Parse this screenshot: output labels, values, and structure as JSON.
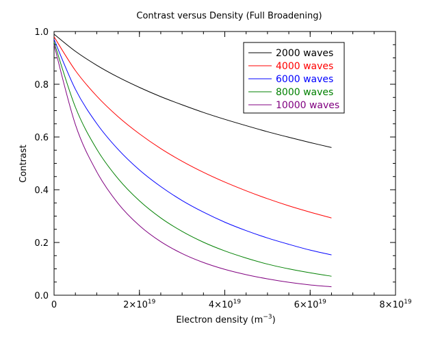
{
  "chart_data": {
    "type": "line",
    "title": "Contrast versus Density (Full Broadening)",
    "xlabel": {
      "text": "Electron density (m",
      "sup": "−3",
      "suffix": ")"
    },
    "ylabel": "Contrast",
    "xlim": [
      0,
      8e+19
    ],
    "ylim": [
      0,
      1
    ],
    "x_ticks": [
      {
        "value": 0,
        "base": "0",
        "exp": ""
      },
      {
        "value": 2e+19,
        "base": "2×10",
        "exp": "19"
      },
      {
        "value": 4e+19,
        "base": "4×10",
        "exp": "19"
      },
      {
        "value": 6e+19,
        "base": "6×10",
        "exp": "19"
      },
      {
        "value": 8e+19,
        "base": "8×10",
        "exp": "19"
      }
    ],
    "y_ticks": [
      {
        "value": 0.0,
        "label": "0.0"
      },
      {
        "value": 0.2,
        "label": "0.2"
      },
      {
        "value": 0.4,
        "label": "0.4"
      },
      {
        "value": 0.6,
        "label": "0.6"
      },
      {
        "value": 0.8,
        "label": "0.8"
      },
      {
        "value": 1.0,
        "label": "1.0"
      }
    ],
    "grid": false,
    "legend_position": "top-right",
    "x": [
      0,
      5e+18,
      1e+19,
      1.5e+19,
      2e+19,
      2.5e+19,
      3e+19,
      3.5e+19,
      4e+19,
      4.5e+19,
      5e+19,
      5.5e+19,
      6e+19,
      6.5e+19
    ],
    "series": [
      {
        "name": "2000 waves",
        "color": "#000000",
        "values": [
          0.99,
          0.925,
          0.872,
          0.827,
          0.788,
          0.753,
          0.722,
          0.693,
          0.667,
          0.643,
          0.62,
          0.599,
          0.579,
          0.56
        ]
      },
      {
        "name": "4000 waves",
        "color": "#ff0000",
        "values": [
          0.98,
          0.852,
          0.755,
          0.677,
          0.612,
          0.556,
          0.508,
          0.466,
          0.429,
          0.396,
          0.366,
          0.339,
          0.315,
          0.293
        ]
      },
      {
        "name": "6000 waves",
        "color": "#0000ff",
        "values": [
          0.97,
          0.781,
          0.651,
          0.553,
          0.475,
          0.412,
          0.359,
          0.315,
          0.277,
          0.245,
          0.217,
          0.193,
          0.171,
          0.153
        ]
      },
      {
        "name": "8000 waves",
        "color": "#008000",
        "values": [
          0.96,
          0.713,
          0.554,
          0.442,
          0.358,
          0.293,
          0.242,
          0.201,
          0.168,
          0.141,
          0.118,
          0.1,
          0.085,
          0.072
        ]
      },
      {
        "name": "10000 waves",
        "color": "#800080",
        "values": [
          0.95,
          0.647,
          0.468,
          0.348,
          0.264,
          0.203,
          0.158,
          0.124,
          0.098,
          0.078,
          0.062,
          0.049,
          0.039,
          0.032
        ]
      }
    ]
  }
}
